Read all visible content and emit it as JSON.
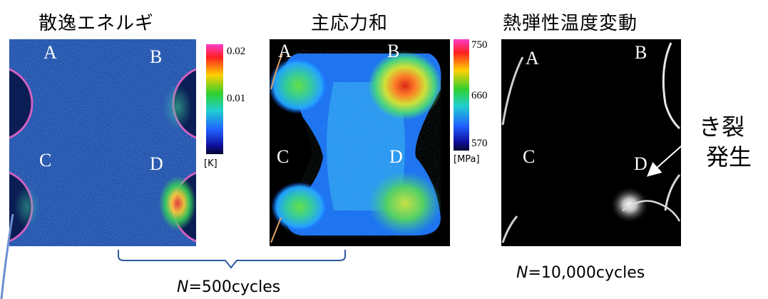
{
  "panels": [
    {
      "title": "散逸エネルギ",
      "corners": [
        "A",
        "B",
        "C",
        "D"
      ],
      "colorbar": {
        "ticks": [
          "0.02",
          "0.01"
        ],
        "unit": "[K]"
      }
    },
    {
      "title": "主応力和",
      "corners": [
        "A",
        "B",
        "C",
        "D"
      ],
      "colorbar": {
        "ticks": [
          "750",
          "660",
          "570"
        ],
        "unit": "[MPa]"
      }
    },
    {
      "title": "熱弾性温度変動",
      "corners": [
        "A",
        "B",
        "C",
        "D"
      ]
    }
  ],
  "annotation": {
    "line1": "き裂",
    "line2": "発生"
  },
  "captions": {
    "left": {
      "var": "N",
      "rest": "=500cycles"
    },
    "right": {
      "var": "N",
      "rest": "=10,000cycles"
    }
  },
  "colors": {
    "dissipation_bg": "#1c3c8c",
    "stress_bg": "#000000",
    "thermo_bg": "#000000",
    "bracket": "#2e5aa0"
  }
}
